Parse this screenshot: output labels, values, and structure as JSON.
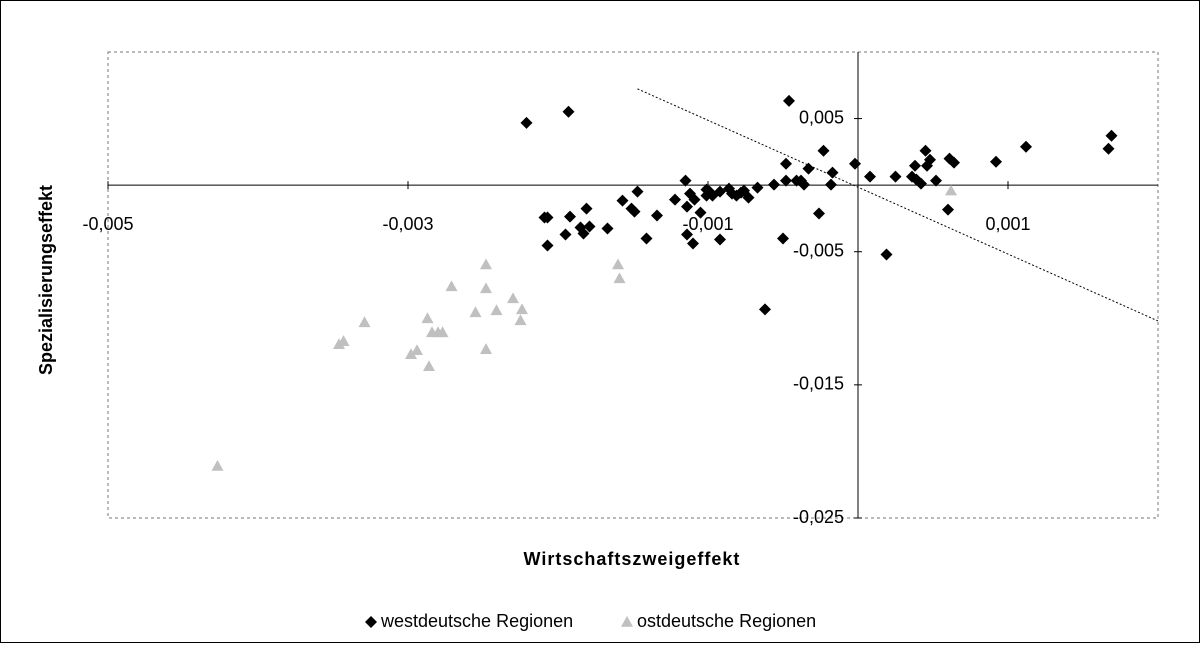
{
  "chart_data": {
    "type": "scatter",
    "x_label": "Wirtschaftszweigeffekt",
    "y_label": "Spezialisierungseffekt",
    "xlim": [
      -0.005,
      0.002
    ],
    "ylim": [
      -0.025,
      0.01
    ],
    "xticks": [
      {
        "value": -0.005,
        "label": "-0,005"
      },
      {
        "value": -0.003,
        "label": "-0,003"
      },
      {
        "value": -0.001,
        "label": "-0,001"
      },
      {
        "value": 0.001,
        "label": "0,001"
      }
    ],
    "yticks": [
      {
        "value": -0.025,
        "label": "-0,025"
      },
      {
        "value": -0.015,
        "label": "-0,015"
      },
      {
        "value": -0.005,
        "label": "-0,005"
      },
      {
        "value": 0.005,
        "label": "0,005"
      }
    ],
    "legend": "bottom",
    "series": [
      {
        "name": "westdeutsche Regionen",
        "color": "#000000",
        "marker": "diamond",
        "x": [
          -0.00221,
          -0.00193,
          -0.00046,
          -0.00209,
          -0.00207,
          -0.00207,
          -0.00192,
          -0.00195,
          -0.00183,
          -0.00181,
          -0.00185,
          -0.00179,
          -0.00167,
          -0.00157,
          -0.00151,
          -0.00149,
          -0.00147,
          -0.00141,
          -0.00134,
          -0.00122,
          -0.00115,
          -0.00112,
          -0.00114,
          -0.00114,
          -0.0011,
          -0.00109,
          -0.00105,
          -0.00101,
          -0.00101,
          -0.00099,
          -0.00097,
          -0.00092,
          -0.00092,
          -0.00086,
          -0.00084,
          -0.00081,
          -0.00078,
          -0.00076,
          -0.00073,
          -0.00067,
          -0.00062,
          -0.00056,
          -0.0005,
          -0.00048,
          -0.00048,
          -0.00041,
          -0.00038,
          -0.00036,
          -0.00033,
          -0.00026,
          -0.00023,
          -0.00018,
          -0.00017,
          -2e-05,
          8e-05,
          0.00019,
          0.00025,
          0.00036,
          0.00038,
          0.00039,
          0.00042,
          0.00045,
          0.00046,
          0.00048,
          0.00052,
          0.0006,
          0.00061,
          0.00064,
          0.00092,
          0.00112,
          0.00167,
          0.00169
        ],
        "y": [
          0.00468,
          0.00551,
          0.00633,
          -0.00243,
          -0.00243,
          -0.00453,
          -0.00236,
          -0.00371,
          -0.00363,
          -0.00176,
          -0.00318,
          -0.00311,
          -0.00326,
          -0.00116,
          -0.00176,
          -0.00199,
          -0.00049,
          -0.00401,
          -0.00228,
          -0.00109,
          0.00034,
          -0.00064,
          -0.00161,
          -0.00371,
          -0.00438,
          -0.00109,
          -0.00206,
          -0.00079,
          -0.00034,
          -0.00049,
          -0.00079,
          -0.00049,
          -0.00408,
          -0.00026,
          -0.00064,
          -0.00079,
          -0.00056,
          -0.00041,
          -0.00094,
          -0.00019,
          -0.00933,
          4e-05,
          -0.00401,
          0.00161,
          0.00034,
          0.00034,
          0.00034,
          4e-05,
          0.00124,
          -0.00213,
          0.00258,
          4e-05,
          0.00094,
          0.00161,
          0.00064,
          -0.00521,
          0.00064,
          0.00064,
          0.00146,
          0.00041,
          0.00011,
          0.00258,
          0.00146,
          0.00191,
          0.00034,
          -0.00184,
          0.00199,
          0.00169,
          0.00176,
          0.00288,
          0.00273,
          0.00371
        ]
      },
      {
        "name": "ostdeutsche Regionen",
        "color": "#c0c0c0",
        "marker": "triangle",
        "x": [
          -0.00427,
          -0.00346,
          -0.00343,
          -0.00329,
          -0.00298,
          -0.00294,
          -0.00287,
          -0.00286,
          -0.00284,
          -0.0028,
          -0.00277,
          -0.00271,
          -0.00255,
          -0.00248,
          -0.00248,
          -0.00248,
          -0.00241,
          -0.0023,
          -0.00225,
          -0.00224,
          -0.0016,
          -0.00159,
          0.00062
        ],
        "y": [
          -0.02109,
          -0.01195,
          -0.01172,
          -0.0103,
          -0.0127,
          -0.0124,
          -0.01,
          -0.0136,
          -0.01105,
          -0.01105,
          -0.01105,
          -0.0076,
          -0.00955,
          -0.00596,
          -0.00775,
          -0.01232,
          -0.0094,
          -0.0085,
          -0.01015,
          -0.00933,
          -0.00596,
          -0.007,
          -0.00041
        ]
      }
    ],
    "trendline": {
      "x": [
        -0.00147,
        0.002
      ],
      "y": [
        0.00723,
        -0.0102
      ]
    }
  }
}
